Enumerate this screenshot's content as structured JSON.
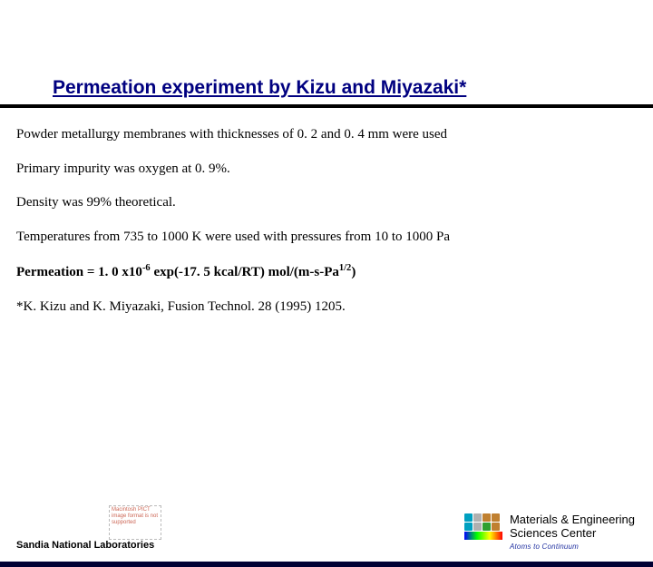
{
  "title": "Permeation experiment by Kizu and Miyazaki*",
  "lines": {
    "l1": "Powder metallurgy membranes with thicknesses of 0. 2 and 0. 4 mm were used",
    "l2": "Primary impurity was oxygen at 0. 9%.",
    "l3": "Density was 99% theoretical.",
    "l4": "Temperatures from 735 to 1000 K were used with pressures from 10 to 1000 Pa",
    "l5_pre": "Permeation = 1. 0 x10",
    "l5_sup1": "-6",
    "l5_mid": " exp(-17. 5 kcal/RT) mol/(m-s-Pa",
    "l5_sup2": "1/2",
    "l5_post": ")",
    "l6": "*K. Kizu and K. Miyazaki, Fusion Technol. 28 (1995) 1205."
  },
  "footer": {
    "pict": "Macintosh PICT image format is not supported",
    "mesc1": "Materials & Engineering",
    "mesc2": "Sciences Center",
    "tagline": "Atoms to Continuum",
    "sandia": "Sandia National Laboratories"
  },
  "logo": {
    "colors_row1": [
      "#00a0c0",
      "#b0b0b0",
      "#c08030",
      "#c08030"
    ],
    "colors_row2": [
      "#00a0c0",
      "#b0b0b0",
      "#30a030",
      "#c08030"
    ]
  },
  "colors": {
    "title": "#000080",
    "rule": "#000000",
    "tagline": "#2030a0",
    "bottombar": "#000033"
  }
}
